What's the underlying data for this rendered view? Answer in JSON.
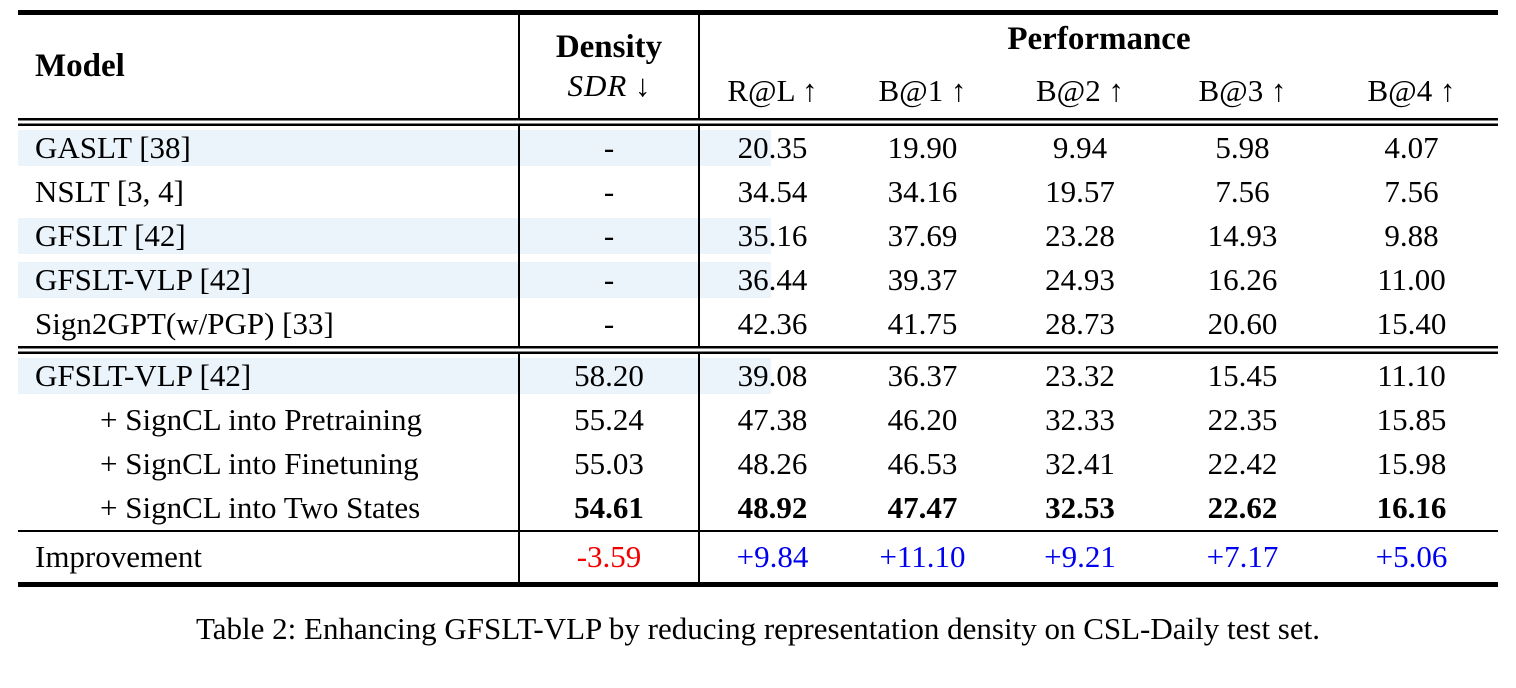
{
  "colors": {
    "stripe": "#ebf3fb",
    "negative_value": "#f20000",
    "positive_value": "#0000f0"
  },
  "table": {
    "header": {
      "model": "Model",
      "density_title": "Density",
      "density_metric": "SDR",
      "density_arrow": "↓",
      "performance_title": "Performance",
      "metric_columns": [
        "R@L ↑",
        "B@1 ↑",
        "B@2 ↑",
        "B@3 ↑",
        "B@4 ↑"
      ]
    },
    "block1": {
      "rows": [
        {
          "model": "GASLT [38]",
          "density": "-",
          "values": [
            "20.35",
            "19.90",
            "9.94",
            "5.98",
            "4.07"
          ]
        },
        {
          "model": "NSLT [3, 4]",
          "density": "-",
          "values": [
            "34.54",
            "34.16",
            "19.57",
            "7.56",
            "7.56"
          ]
        },
        {
          "model": "GFSLT [42]",
          "density": "-",
          "values": [
            "35.16",
            "37.69",
            "23.28",
            "14.93",
            "9.88"
          ]
        },
        {
          "model": "GFSLT-VLP [42]",
          "density": "-",
          "values": [
            "36.44",
            "39.37",
            "24.93",
            "16.26",
            "11.00"
          ]
        },
        {
          "model": "Sign2GPT(w/PGP) [33]",
          "density": "-",
          "values": [
            "42.36",
            "41.75",
            "28.73",
            "20.60",
            "15.40"
          ]
        }
      ]
    },
    "block2": {
      "rows": [
        {
          "model": "GFSLT-VLP [42]",
          "density": "58.20",
          "values": [
            "39.08",
            "36.37",
            "23.32",
            "15.45",
            "11.10"
          ]
        },
        {
          "model": "+ SignCL into Pretraining",
          "density": "55.24",
          "values": [
            "47.38",
            "46.20",
            "32.33",
            "22.35",
            "15.85"
          ]
        },
        {
          "model": "+ SignCL into Finetuning",
          "density": "55.03",
          "values": [
            "48.26",
            "46.53",
            "32.41",
            "22.42",
            "15.98"
          ]
        },
        {
          "model": "+ SignCL into Two States",
          "density": "54.61",
          "values": [
            "48.92",
            "47.47",
            "32.53",
            "22.62",
            "16.16"
          ]
        }
      ]
    },
    "improvement": {
      "label": "Improvement",
      "density": "-3.59",
      "values": [
        "+9.84",
        "+11.10",
        "+9.21",
        "+7.17",
        "+5.06"
      ]
    }
  },
  "caption": "Table 2: Enhancing GFSLT-VLP by reducing representation density on CSL-Daily test set."
}
